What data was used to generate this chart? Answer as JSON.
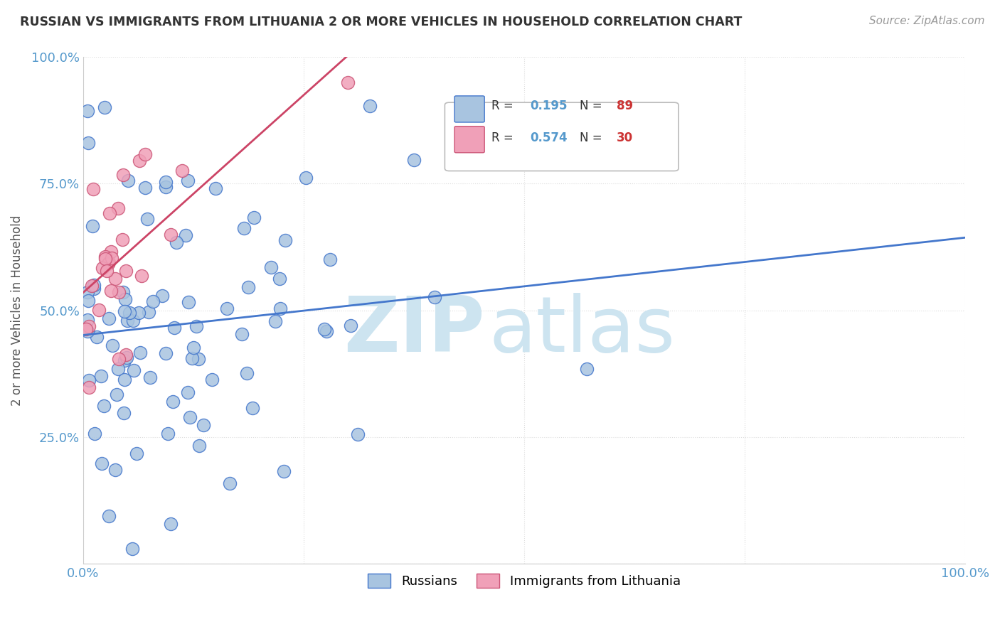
{
  "title": "RUSSIAN VS IMMIGRANTS FROM LITHUANIA 2 OR MORE VEHICLES IN HOUSEHOLD CORRELATION CHART",
  "source": "Source: ZipAtlas.com",
  "ylabel": "2 or more Vehicles in Household",
  "xlim": [
    0,
    1.0
  ],
  "ylim": [
    0,
    1.0
  ],
  "russian_color": "#a8c4e0",
  "russian_edge_color": "#4477cc",
  "lithuania_color": "#f0a0b8",
  "lithuania_edge_color": "#cc5577",
  "russian_line_color": "#4477cc",
  "lithuania_line_color": "#cc4466",
  "watermark_color": "#cde4f0",
  "background_color": "#ffffff",
  "title_color": "#333333",
  "source_color": "#999999",
  "tick_color": "#5599cc",
  "grid_color": "#dddddd",
  "legend_r_color": "#5599cc",
  "legend_n_color": "#cc3333"
}
